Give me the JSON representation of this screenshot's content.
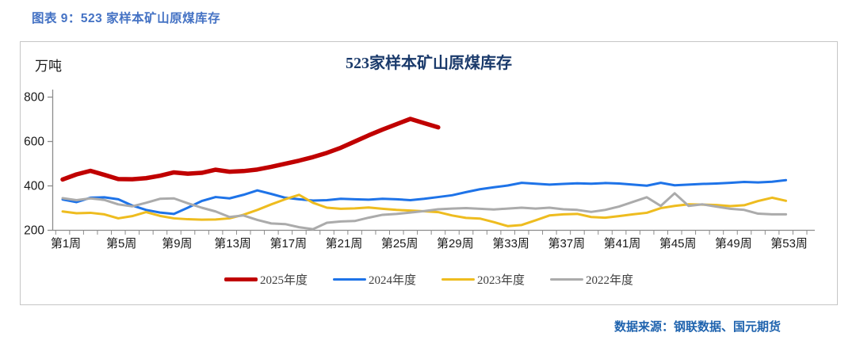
{
  "page": {
    "caption": "图表 9：523 家样本矿山原煤库存",
    "source": "数据来源：钢联数据、国元期货"
  },
  "chart_data": {
    "type": "line",
    "title": "523家样本矿山原煤库存",
    "unit_label": "万吨",
    "ylabel": "万吨",
    "ylim": [
      200,
      800
    ],
    "yticks": [
      200,
      400,
      600,
      800
    ],
    "grid": false,
    "legend_position": "bottom",
    "x_tick_labels": [
      "第1周",
      "第5周",
      "第9周",
      "第13周",
      "第17周",
      "第21周",
      "第25周",
      "第29周",
      "第33周",
      "第37周",
      "第41周",
      "第45周",
      "第49周",
      "第53周"
    ],
    "x_tick_weeks": [
      1,
      5,
      9,
      13,
      17,
      21,
      25,
      29,
      33,
      37,
      41,
      45,
      49,
      53
    ],
    "x_weeks_total": 53,
    "series": [
      {
        "name": "2025年度",
        "color": "#c00000",
        "stroke_width": 5.5,
        "start_week": 1,
        "values": [
          427,
          450,
          466,
          448,
          429,
          428,
          433,
          444,
          459,
          453,
          457,
          471,
          462,
          465,
          472,
          484,
          498,
          512,
          528,
          547,
          570,
          598,
          626,
          652,
          676,
          700,
          681,
          662
        ]
      },
      {
        "name": "2024年度",
        "color": "#1e73e8",
        "stroke_width": 3,
        "start_week": 1,
        "values": [
          337,
          325,
          345,
          347,
          338,
          310,
          290,
          278,
          272,
          300,
          330,
          348,
          342,
          358,
          378,
          362,
          345,
          338,
          332,
          334,
          340,
          338,
          336,
          340,
          338,
          334,
          340,
          348,
          356,
          370,
          383,
          392,
          400,
          412,
          408,
          404,
          407,
          410,
          408,
          411,
          409,
          404,
          399,
          412,
          401,
          404,
          407,
          409,
          412,
          416,
          414,
          417,
          424
        ]
      },
      {
        "name": "2023年度",
        "color": "#eebc1f",
        "stroke_width": 3,
        "start_week": 1,
        "values": [
          283,
          275,
          277,
          270,
          252,
          262,
          280,
          263,
          252,
          248,
          246,
          247,
          252,
          268,
          290,
          315,
          338,
          358,
          322,
          300,
          295,
          297,
          301,
          295,
          290,
          287,
          284,
          280,
          265,
          254,
          251,
          235,
          217,
          222,
          243,
          265,
          270,
          272,
          258,
          255,
          262,
          270,
          277,
          298,
          308,
          315,
          314,
          312,
          307,
          311,
          330,
          345,
          331
        ]
      },
      {
        "name": "2022年度",
        "color": "#ababab",
        "stroke_width": 3,
        "start_week": 1,
        "values": [
          343,
          334,
          342,
          335,
          315,
          306,
          322,
          340,
          342,
          320,
          300,
          283,
          258,
          265,
          245,
          229,
          226,
          212,
          203,
          232,
          238,
          240,
          255,
          268,
          272,
          278,
          285,
          293,
          296,
          298,
          295,
          292,
          296,
          300,
          296,
          300,
          293,
          290,
          281,
          290,
          305,
          326,
          347,
          308,
          365,
          308,
          315,
          305,
          295,
          290,
          273,
          270,
          270
        ]
      }
    ],
    "axis_color": "#8c8c8c",
    "tick_text_color": "#1a1a1a"
  }
}
